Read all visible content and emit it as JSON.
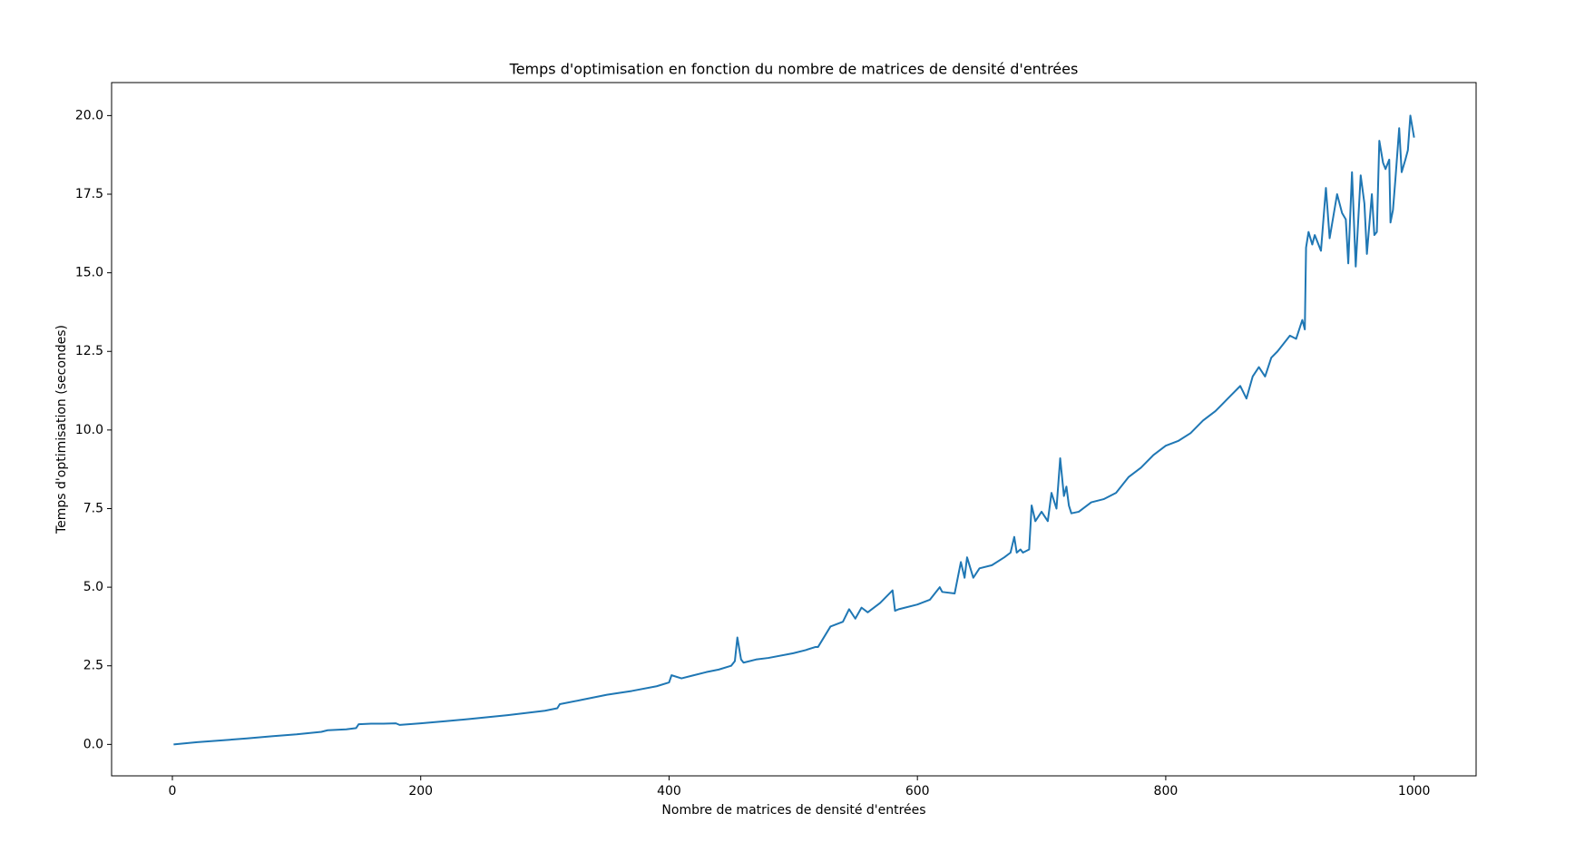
{
  "chart_data": {
    "type": "line",
    "title": "Temps d'optimisation en fonction du nombre de matrices de densité d'entrées",
    "x_label": "Nombre de matrices de densité d'entrées",
    "y_label": "Temps d'optimisation (secondes)",
    "color": "#1f77b4",
    "grid": false,
    "x": [
      1,
      20,
      40,
      60,
      80,
      100,
      120,
      125,
      140,
      148,
      150,
      160,
      170,
      180,
      183,
      200,
      220,
      240,
      270,
      300,
      310,
      312,
      330,
      350,
      370,
      390,
      400,
      402,
      410,
      430,
      440,
      450,
      453,
      455,
      458,
      460,
      470,
      480,
      500,
      510,
      518,
      520,
      530,
      540,
      545,
      550,
      555,
      560,
      570,
      580,
      582,
      585,
      600,
      610,
      618,
      620,
      630,
      635,
      638,
      640,
      645,
      650,
      660,
      670,
      675,
      678,
      680,
      683,
      685,
      690,
      692,
      695,
      700,
      705,
      708,
      712,
      715,
      718,
      720,
      722,
      724,
      730,
      740,
      750,
      760,
      770,
      780,
      790,
      800,
      810,
      820,
      830,
      840,
      845,
      850,
      860,
      865,
      870,
      875,
      880,
      885,
      890,
      900,
      905,
      910,
      912,
      913,
      915,
      918,
      920,
      925,
      929,
      932,
      935,
      938,
      942,
      945,
      947,
      950,
      953,
      957,
      960,
      962,
      966,
      968,
      970,
      972,
      975,
      977,
      980,
      981,
      983,
      985,
      988,
      990,
      993,
      995,
      997,
      1000
    ],
    "values": [
      0.0,
      0.07,
      0.13,
      0.19,
      0.26,
      0.32,
      0.4,
      0.45,
      0.48,
      0.52,
      0.64,
      0.66,
      0.66,
      0.67,
      0.62,
      0.67,
      0.74,
      0.81,
      0.93,
      1.07,
      1.15,
      1.28,
      1.42,
      1.58,
      1.7,
      1.85,
      1.97,
      2.2,
      2.1,
      2.3,
      2.38,
      2.5,
      2.65,
      3.4,
      2.7,
      2.6,
      2.7,
      2.75,
      2.9,
      3.0,
      3.1,
      3.1,
      3.75,
      3.9,
      4.3,
      4.0,
      4.35,
      4.2,
      4.5,
      4.9,
      4.25,
      4.3,
      4.45,
      4.6,
      5.0,
      4.85,
      4.8,
      5.8,
      5.3,
      5.95,
      5.3,
      5.6,
      5.7,
      5.95,
      6.1,
      6.6,
      6.1,
      6.2,
      6.1,
      6.2,
      7.6,
      7.1,
      7.4,
      7.1,
      8.0,
      7.5,
      9.1,
      7.9,
      8.2,
      7.6,
      7.35,
      7.4,
      7.7,
      7.8,
      8.0,
      8.5,
      8.8,
      9.2,
      9.5,
      9.65,
      9.9,
      10.3,
      10.6,
      10.8,
      11.0,
      11.4,
      11.0,
      11.7,
      12.0,
      11.7,
      12.3,
      12.5,
      13.0,
      12.9,
      13.5,
      13.2,
      15.8,
      16.3,
      15.9,
      16.2,
      15.7,
      17.7,
      16.1,
      16.8,
      17.5,
      16.9,
      16.7,
      15.3,
      18.2,
      15.2,
      18.1,
      17.2,
      15.6,
      17.5,
      16.2,
      16.3,
      19.2,
      18.5,
      18.3,
      18.6,
      16.6,
      17.0,
      18.0,
      19.6,
      18.2,
      18.6,
      18.9,
      20.0,
      19.3
    ],
    "xlim": [
      -48.95,
      1049.95
    ],
    "xticks": [
      0,
      200,
      400,
      600,
      800,
      1000
    ],
    "ylim": [
      -1.0,
      21.05
    ],
    "yticks": [
      {
        "value": 0,
        "label": "0.0"
      },
      2.5,
      {
        "value": 5,
        "label": "5.0"
      },
      7.5,
      {
        "value": 10,
        "label": "10.0"
      },
      12.5,
      {
        "value": 15,
        "label": "15.0"
      },
      17.5,
      {
        "value": 20,
        "label": "20.0"
      }
    ]
  }
}
